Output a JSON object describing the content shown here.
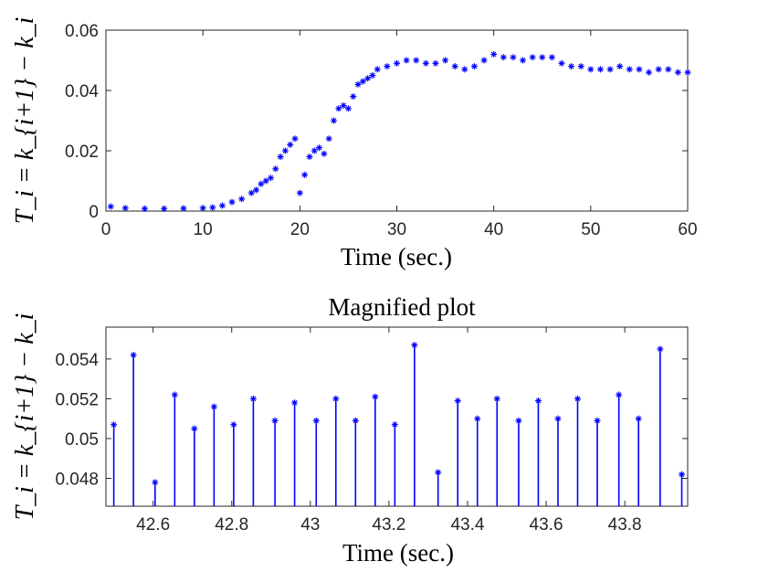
{
  "chart_data": [
    {
      "type": "scatter",
      "title": "",
      "xlabel": "Time (sec.)",
      "ylabel": "T_i = k_{i+1} − k_i",
      "xlim": [
        0,
        60
      ],
      "ylim": [
        0,
        0.06
      ],
      "xticks": [
        "0",
        "10",
        "20",
        "30",
        "40",
        "50",
        "60"
      ],
      "yticks": [
        "0",
        "0.02",
        "0.04",
        "0.06"
      ],
      "marker": "*",
      "color": "#0000ff",
      "series": [
        {
          "name": "T_i",
          "x": [
            0.5,
            2,
            4,
            6,
            8,
            10,
            11,
            12,
            13,
            14,
            15,
            15.5,
            16,
            16.5,
            17,
            17.5,
            18,
            18.5,
            19,
            19.5,
            20,
            20.5,
            21,
            21.5,
            22,
            22.5,
            23,
            23.5,
            24,
            24.5,
            25,
            25.5,
            26,
            26.5,
            27,
            27.5,
            28,
            29,
            30,
            31,
            32,
            33,
            34,
            35,
            36,
            37,
            38,
            39,
            40,
            41,
            42,
            43,
            44,
            45,
            46,
            47,
            48,
            49,
            50,
            51,
            52,
            53,
            54,
            55,
            56,
            57,
            58,
            59,
            60
          ],
          "y": [
            0.0015,
            0.001,
            0.0008,
            0.0008,
            0.0009,
            0.001,
            0.0012,
            0.0018,
            0.003,
            0.004,
            0.006,
            0.007,
            0.009,
            0.01,
            0.011,
            0.014,
            0.018,
            0.02,
            0.022,
            0.024,
            0.006,
            0.012,
            0.018,
            0.02,
            0.021,
            0.019,
            0.024,
            0.03,
            0.034,
            0.035,
            0.034,
            0.038,
            0.042,
            0.043,
            0.044,
            0.045,
            0.047,
            0.048,
            0.049,
            0.05,
            0.05,
            0.049,
            0.049,
            0.05,
            0.048,
            0.047,
            0.048,
            0.05,
            0.052,
            0.051,
            0.051,
            0.05,
            0.051,
            0.051,
            0.051,
            0.049,
            0.048,
            0.048,
            0.047,
            0.047,
            0.047,
            0.048,
            0.047,
            0.047,
            0.046,
            0.047,
            0.047,
            0.046,
            0.046
          ]
        }
      ]
    },
    {
      "type": "stem",
      "title": "Magnified plot",
      "xlabel": "Time (sec.)",
      "ylabel": "T_i = k_{i+1} − k_i",
      "xlim": [
        42.48,
        43.96
      ],
      "ylim": [
        0.0466,
        0.0556
      ],
      "xticks": [
        "42.6",
        "42.8",
        "43",
        "43.2",
        "43.4",
        "43.6",
        "43.8"
      ],
      "yticks": [
        "0.048",
        "0.05",
        "0.052",
        "0.054"
      ],
      "marker": "*",
      "color": "#0000ff",
      "series": [
        {
          "name": "T_i",
          "x": [
            42.5,
            42.55,
            42.605,
            42.655,
            42.705,
            42.755,
            42.805,
            42.855,
            42.91,
            42.96,
            43.015,
            43.065,
            43.115,
            43.165,
            43.215,
            43.265,
            43.325,
            43.375,
            43.425,
            43.475,
            43.53,
            43.58,
            43.63,
            43.68,
            43.73,
            43.785,
            43.835,
            43.89,
            43.945
          ],
          "y": [
            0.0507,
            0.0542,
            0.0478,
            0.0522,
            0.0505,
            0.0516,
            0.0507,
            0.052,
            0.0509,
            0.0518,
            0.0509,
            0.052,
            0.0509,
            0.0521,
            0.0507,
            0.0547,
            0.0483,
            0.0519,
            0.051,
            0.052,
            0.0509,
            0.0519,
            0.051,
            0.052,
            0.0509,
            0.0522,
            0.051,
            0.0545,
            0.0482
          ]
        }
      ]
    }
  ]
}
